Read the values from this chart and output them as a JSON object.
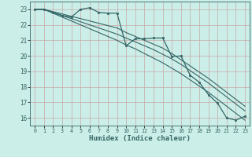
{
  "xlabel": "Humidex (Indice chaleur)",
  "bg_color": "#cceee8",
  "grid_color": "#c8a8a8",
  "line_color": "#336666",
  "xlim": [
    -0.5,
    23.5
  ],
  "ylim": [
    15.5,
    23.5
  ],
  "xticks": [
    0,
    1,
    2,
    3,
    4,
    5,
    6,
    7,
    8,
    9,
    10,
    11,
    12,
    13,
    14,
    15,
    16,
    17,
    18,
    19,
    20,
    21,
    22,
    23
  ],
  "yticks": [
    16,
    17,
    18,
    19,
    20,
    21,
    22,
    23
  ],
  "main_y": [
    23.0,
    23.0,
    22.8,
    22.6,
    22.5,
    23.0,
    23.1,
    22.8,
    22.75,
    22.75,
    20.65,
    21.1,
    21.1,
    21.15,
    21.15,
    19.95,
    20.0,
    18.75,
    18.3,
    17.5,
    16.95,
    16.0,
    15.85,
    16.1
  ],
  "line1_y": [
    23.0,
    23.0,
    22.85,
    22.7,
    22.55,
    22.4,
    22.25,
    22.1,
    21.95,
    21.8,
    21.5,
    21.25,
    21.0,
    20.75,
    20.5,
    20.15,
    19.75,
    19.35,
    18.95,
    18.55,
    18.1,
    17.65,
    17.2,
    16.75
  ],
  "line2_y": [
    23.0,
    23.0,
    22.8,
    22.6,
    22.4,
    22.2,
    22.0,
    21.8,
    21.6,
    21.4,
    21.15,
    20.9,
    20.65,
    20.4,
    20.1,
    19.8,
    19.45,
    19.05,
    18.65,
    18.25,
    17.8,
    17.35,
    16.9,
    16.45
  ],
  "line3_y": [
    23.0,
    23.0,
    22.75,
    22.5,
    22.25,
    22.0,
    21.75,
    21.5,
    21.25,
    21.0,
    20.7,
    20.45,
    20.15,
    19.85,
    19.55,
    19.2,
    18.85,
    18.45,
    18.05,
    17.65,
    17.2,
    16.75,
    16.3,
    15.85
  ]
}
